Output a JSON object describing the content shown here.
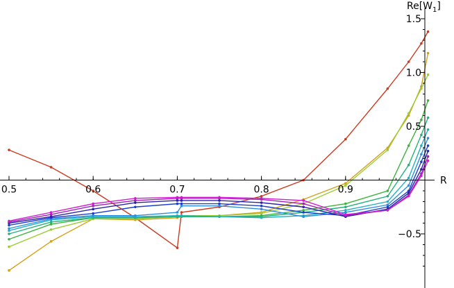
{
  "chart_data": {
    "type": "line",
    "xlabel": "R",
    "ylabel": "Re[W1]",
    "ylabel_main": "Re[W",
    "ylabel_sub": "1",
    "ylabel_close": "]",
    "xlim": [
      0.5,
      1.0
    ],
    "ylim": [
      -0.9,
      1.5
    ],
    "axes_origin": [
      0.5,
      0.0
    ],
    "grid": false,
    "x_ticks": [
      {
        "value": 0.5,
        "label": "0.5"
      },
      {
        "value": 0.6,
        "label": "0.6"
      },
      {
        "value": 0.7,
        "label": "0.7"
      },
      {
        "value": 0.8,
        "label": "0.8"
      },
      {
        "value": 0.9,
        "label": "0.9"
      }
    ],
    "y_ticks": [
      {
        "value": -0.5,
        "label": "−0.5"
      },
      {
        "value": 0.5,
        "label": "0.5"
      },
      {
        "value": 1.0,
        "label": "1.0"
      },
      {
        "value": 1.5,
        "label": "1.5"
      }
    ],
    "series": [
      {
        "color": "#cc3a1e",
        "points": [
          [
            0.5,
            0.28
          ],
          [
            0.55,
            0.12
          ],
          [
            0.6,
            -0.1
          ],
          [
            0.65,
            -0.35
          ],
          [
            0.7,
            -0.63
          ],
          [
            0.705,
            -0.3
          ],
          [
            0.75,
            -0.25
          ],
          [
            0.8,
            -0.15
          ],
          [
            0.85,
            0.0
          ],
          [
            0.9,
            0.38
          ],
          [
            0.95,
            0.85
          ],
          [
            0.975,
            1.1
          ],
          [
            0.99,
            1.27
          ],
          [
            0.998,
            1.38
          ]
        ]
      },
      {
        "color": "#d4a017",
        "points": [
          [
            0.5,
            -0.84
          ],
          [
            0.55,
            -0.57
          ],
          [
            0.6,
            -0.36
          ],
          [
            0.65,
            -0.37
          ],
          [
            0.7,
            -0.35
          ],
          [
            0.705,
            -0.34
          ],
          [
            0.75,
            -0.33
          ],
          [
            0.8,
            -0.3
          ],
          [
            0.85,
            -0.18
          ],
          [
            0.9,
            -0.03
          ],
          [
            0.95,
            0.3
          ],
          [
            0.975,
            0.6
          ],
          [
            0.99,
            0.87
          ],
          [
            0.998,
            1.18
          ]
        ]
      },
      {
        "color": "#9acd32",
        "points": [
          [
            0.5,
            -0.62
          ],
          [
            0.55,
            -0.46
          ],
          [
            0.6,
            -0.36
          ],
          [
            0.65,
            -0.36
          ],
          [
            0.7,
            -0.34
          ],
          [
            0.705,
            -0.33
          ],
          [
            0.75,
            -0.33
          ],
          [
            0.8,
            -0.31
          ],
          [
            0.85,
            -0.22
          ],
          [
            0.9,
            -0.05
          ],
          [
            0.95,
            0.28
          ],
          [
            0.975,
            0.62
          ],
          [
            0.99,
            0.85
          ],
          [
            0.998,
            0.98
          ]
        ]
      },
      {
        "color": "#3cb33c",
        "points": [
          [
            0.5,
            -0.55
          ],
          [
            0.55,
            -0.41
          ],
          [
            0.6,
            -0.35
          ],
          [
            0.65,
            -0.35
          ],
          [
            0.7,
            -0.34
          ],
          [
            0.705,
            -0.34
          ],
          [
            0.75,
            -0.34
          ],
          [
            0.8,
            -0.33
          ],
          [
            0.85,
            -0.28
          ],
          [
            0.9,
            -0.22
          ],
          [
            0.95,
            -0.1
          ],
          [
            0.975,
            0.32
          ],
          [
            0.99,
            0.56
          ],
          [
            0.998,
            0.74
          ]
        ]
      },
      {
        "color": "#20b27a",
        "points": [
          [
            0.5,
            -0.5
          ],
          [
            0.55,
            -0.39
          ],
          [
            0.6,
            -0.35
          ],
          [
            0.65,
            -0.35
          ],
          [
            0.7,
            -0.34
          ],
          [
            0.705,
            -0.34
          ],
          [
            0.75,
            -0.34
          ],
          [
            0.8,
            -0.34
          ],
          [
            0.85,
            -0.3
          ],
          [
            0.9,
            -0.25
          ],
          [
            0.95,
            -0.15
          ],
          [
            0.975,
            0.14
          ],
          [
            0.99,
            0.42
          ],
          [
            0.998,
            0.58
          ]
        ]
      },
      {
        "color": "#20b0c0",
        "points": [
          [
            0.5,
            -0.47
          ],
          [
            0.55,
            -0.37
          ],
          [
            0.6,
            -0.34
          ],
          [
            0.65,
            -0.34
          ],
          [
            0.7,
            -0.33
          ],
          [
            0.705,
            -0.33
          ],
          [
            0.75,
            -0.34
          ],
          [
            0.8,
            -0.35
          ],
          [
            0.85,
            -0.33
          ],
          [
            0.9,
            -0.28
          ],
          [
            0.95,
            -0.2
          ],
          [
            0.975,
            0.02
          ],
          [
            0.99,
            0.32
          ],
          [
            0.998,
            0.47
          ]
        ]
      },
      {
        "color": "#2a8ee0",
        "points": [
          [
            0.5,
            -0.45
          ],
          [
            0.55,
            -0.36
          ],
          [
            0.6,
            -0.33
          ],
          [
            0.65,
            -0.33
          ],
          [
            0.7,
            -0.3
          ],
          [
            0.705,
            -0.24
          ],
          [
            0.75,
            -0.24
          ],
          [
            0.8,
            -0.27
          ],
          [
            0.85,
            -0.34
          ],
          [
            0.9,
            -0.3
          ],
          [
            0.95,
            -0.23
          ],
          [
            0.975,
            -0.05
          ],
          [
            0.99,
            0.24
          ],
          [
            0.998,
            0.39
          ]
        ]
      },
      {
        "color": "#1a3fd0",
        "points": [
          [
            0.5,
            -0.42
          ],
          [
            0.55,
            -0.35
          ],
          [
            0.6,
            -0.31
          ],
          [
            0.65,
            -0.25
          ],
          [
            0.7,
            -0.22
          ],
          [
            0.705,
            -0.22
          ],
          [
            0.75,
            -0.22
          ],
          [
            0.8,
            -0.24
          ],
          [
            0.85,
            -0.3
          ],
          [
            0.9,
            -0.33
          ],
          [
            0.95,
            -0.25
          ],
          [
            0.975,
            -0.1
          ],
          [
            0.99,
            0.17
          ],
          [
            0.998,
            0.32
          ]
        ]
      },
      {
        "color": "#2a22a8",
        "points": [
          [
            0.5,
            -0.4
          ],
          [
            0.55,
            -0.34
          ],
          [
            0.6,
            -0.27
          ],
          [
            0.65,
            -0.21
          ],
          [
            0.7,
            -0.19
          ],
          [
            0.705,
            -0.19
          ],
          [
            0.75,
            -0.19
          ],
          [
            0.8,
            -0.21
          ],
          [
            0.85,
            -0.25
          ],
          [
            0.9,
            -0.34
          ],
          [
            0.95,
            -0.27
          ],
          [
            0.975,
            -0.12
          ],
          [
            0.99,
            0.1
          ],
          [
            0.998,
            0.27
          ]
        ]
      },
      {
        "color": "#a020b8",
        "points": [
          [
            0.5,
            -0.39
          ],
          [
            0.55,
            -0.32
          ],
          [
            0.6,
            -0.24
          ],
          [
            0.65,
            -0.19
          ],
          [
            0.7,
            -0.17
          ],
          [
            0.705,
            -0.17
          ],
          [
            0.75,
            -0.17
          ],
          [
            0.8,
            -0.18
          ],
          [
            0.85,
            -0.22
          ],
          [
            0.9,
            -0.33
          ],
          [
            0.95,
            -0.28
          ],
          [
            0.975,
            -0.14
          ],
          [
            0.99,
            0.06
          ],
          [
            0.998,
            0.22
          ]
        ]
      },
      {
        "color": "#d11ad1",
        "points": [
          [
            0.5,
            -0.38
          ],
          [
            0.55,
            -0.3
          ],
          [
            0.6,
            -0.22
          ],
          [
            0.65,
            -0.17
          ],
          [
            0.7,
            -0.16
          ],
          [
            0.705,
            -0.16
          ],
          [
            0.75,
            -0.16
          ],
          [
            0.8,
            -0.17
          ],
          [
            0.85,
            -0.19
          ],
          [
            0.9,
            -0.32
          ],
          [
            0.95,
            -0.28
          ],
          [
            0.975,
            -0.15
          ],
          [
            0.99,
            0.04
          ],
          [
            0.998,
            0.18
          ]
        ]
      }
    ]
  }
}
